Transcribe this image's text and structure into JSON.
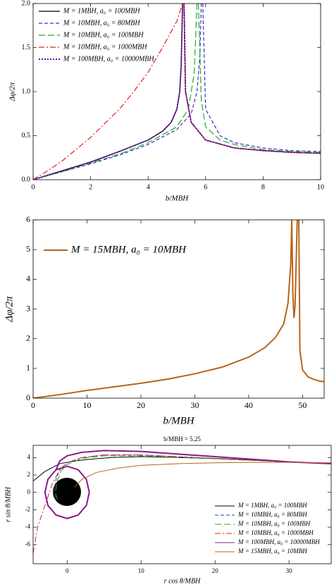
{
  "chart_data": [
    {
      "type": "line",
      "x_label": "b/MBH",
      "y_label": "Δφ/2π",
      "xlim": [
        0,
        10
      ],
      "xticks": [
        0,
        2,
        4,
        6,
        8,
        10
      ],
      "ylim": [
        0,
        2
      ],
      "yticks": [
        {
          "value": 0,
          "label": "0.0"
        },
        {
          "value": 0.5,
          "label": "0.5"
        },
        {
          "value": 1,
          "label": "1.0"
        },
        {
          "value": 1.5,
          "label": "1.5"
        },
        {
          "value": 2,
          "label": "2.0"
        }
      ],
      "legend": "upper left",
      "series": [
        {
          "name": "M = 1MBH, a₀ = 100MBH",
          "color": "#000000",
          "dash": "solid",
          "x": [
            0,
            1,
            2,
            3,
            4,
            4.5,
            4.8,
            5.0,
            5.1,
            5.15,
            5.2,
            5.22,
            5.25,
            5.3,
            5.5,
            6,
            7,
            8,
            9,
            10
          ],
          "values": [
            0,
            0.1,
            0.2,
            0.32,
            0.45,
            0.55,
            0.65,
            0.8,
            1.0,
            1.3,
            2.0,
            null,
            2.0,
            1.0,
            0.65,
            0.45,
            0.36,
            0.33,
            0.31,
            0.3
          ]
        },
        {
          "name": "M = 10MBH, a₀ = 80MBH",
          "color": "#3333cc",
          "dash": "dashed",
          "x": [
            0,
            1,
            2,
            3,
            4,
            5,
            5.5,
            5.7,
            5.8,
            5.85,
            5.87,
            5.9,
            6,
            6.5,
            7,
            8,
            9,
            10
          ],
          "values": [
            0,
            0.09,
            0.18,
            0.28,
            0.4,
            0.57,
            0.75,
            1.0,
            1.4,
            2.0,
            null,
            2.0,
            0.8,
            0.5,
            0.42,
            0.36,
            0.33,
            0.32
          ]
        },
        {
          "name": "M = 10MBH, a₀ = 100MBH",
          "color": "#22aa22",
          "dash": "longdash",
          "x": [
            0,
            1,
            2,
            3,
            4,
            5,
            5.4,
            5.6,
            5.7,
            5.72,
            5.75,
            5.85,
            6,
            6.5,
            7,
            8,
            9,
            10
          ],
          "values": [
            0,
            0.09,
            0.19,
            0.29,
            0.42,
            0.6,
            0.8,
            1.2,
            2.0,
            null,
            2.0,
            0.9,
            0.6,
            0.45,
            0.4,
            0.34,
            0.32,
            0.31
          ]
        },
        {
          "name": "M = 10MBH, a₀ = 1000MBH",
          "color": "#dd2222",
          "dash": "dashdot",
          "x": [
            0,
            0.5,
            1,
            2,
            3,
            3.5,
            4,
            4.5,
            5,
            5.2,
            5.22,
            5.25,
            5.3,
            5.5,
            6,
            7,
            8,
            9,
            10
          ],
          "values": [
            0,
            0.1,
            0.21,
            0.48,
            0.8,
            1.0,
            1.22,
            1.5,
            1.8,
            2.0,
            null,
            2.0,
            1.0,
            0.65,
            0.45,
            0.36,
            0.33,
            0.31,
            0.3
          ]
        },
        {
          "name": "M = 100MBH, a₀ = 10000MBH",
          "color": "#6a0dad",
          "dash": "dotted",
          "x": [
            0,
            1,
            2,
            3,
            4,
            4.5,
            4.8,
            5.0,
            5.1,
            5.15,
            5.2,
            5.22,
            5.25,
            5.3,
            5.5,
            6,
            7,
            8,
            9,
            10
          ],
          "values": [
            0,
            0.1,
            0.2,
            0.32,
            0.45,
            0.55,
            0.65,
            0.8,
            1.0,
            1.3,
            2.0,
            null,
            2.0,
            1.0,
            0.65,
            0.45,
            0.36,
            0.33,
            0.31,
            0.3
          ]
        }
      ]
    },
    {
      "type": "line",
      "x_label": "b/MBH",
      "y_label": "Δφ/2π",
      "xlim": [
        0,
        54
      ],
      "xticks": [
        0,
        10,
        20,
        30,
        40,
        50
      ],
      "ylim": [
        0,
        6
      ],
      "yticks": [
        0,
        1,
        2,
        3,
        4,
        5,
        6
      ],
      "legend": "upper left",
      "series": [
        {
          "name": "M = 15MBH, a₀ = 10MBH",
          "color": "#b8651b",
          "dash": "solid",
          "x": [
            0,
            5,
            10,
            15,
            20,
            25,
            30,
            35,
            40,
            43,
            45,
            46.5,
            47.3,
            47.8,
            48.0,
            48.2,
            48.4,
            48.6,
            48.8,
            49.0,
            49.1,
            49.3,
            49.5,
            50,
            51,
            52,
            53,
            54
          ],
          "values": [
            0,
            0.12,
            0.26,
            0.38,
            0.5,
            0.64,
            0.82,
            1.04,
            1.38,
            1.7,
            2.05,
            2.5,
            3.2,
            4.5,
            6.0,
            3.5,
            2.7,
            3.1,
            4.5,
            6.0,
            null,
            6.0,
            1.6,
            0.95,
            0.72,
            0.64,
            0.58,
            0.55
          ]
        }
      ]
    },
    {
      "type": "line",
      "title": "b/MBH = 5.25",
      "x_label": "r cos θ/MBH",
      "y_label": "r sin θ/MBH",
      "xlim": [
        -4.6,
        35.7
      ],
      "xticks": [
        0,
        10,
        20,
        30
      ],
      "ylim": [
        -8.2,
        5.4
      ],
      "yticks": [
        -6,
        -4,
        -2,
        0,
        2,
        4
      ],
      "legend": "lower right",
      "series": [
        {
          "name": "M = 1MBH, a₀ = 100MBH",
          "color": "#000000",
          "dash": "solid",
          "x": [
            -4.6,
            -3,
            -1,
            1,
            3,
            6,
            10,
            15,
            20,
            25,
            30,
            35.7
          ],
          "values": [
            1.3,
            2.4,
            3.3,
            3.6,
            3.8,
            4.0,
            4.1,
            4.0,
            3.9,
            3.7,
            3.5,
            3.3
          ]
        },
        {
          "name": "M = 10MBH, a₀ = 80MBH",
          "color": "#3333cc",
          "dash": "dashed",
          "x": [
            -1.5,
            -1.8,
            -1.5,
            -1,
            0,
            2,
            5,
            10,
            20,
            30,
            35.7
          ],
          "values": [
            -0.6,
            0,
            1.5,
            2.6,
            3.4,
            4.0,
            4.3,
            4.3,
            3.9,
            3.5,
            3.3
          ]
        },
        {
          "name": "M = 10MBH, a₀ = 100MBH",
          "color": "#22aa22",
          "dash": "longdash",
          "x": [
            -1.3,
            -1.6,
            -1.3,
            -0.8,
            0,
            2,
            5,
            10,
            20,
            30,
            35.7
          ],
          "values": [
            -0.8,
            0,
            1.4,
            2.5,
            3.2,
            3.9,
            4.2,
            4.2,
            3.85,
            3.5,
            3.3
          ]
        },
        {
          "name": "M = 10MBH, a₀ = 1000MBH",
          "color": "#dd2222",
          "dash": "dashdot",
          "x": [
            -4.6,
            -4,
            -3,
            -2,
            -1,
            0,
            2,
            5,
            10,
            20,
            30,
            35.7
          ],
          "values": [
            -7,
            -4,
            -1.5,
            1,
            2.6,
            3.4,
            4.0,
            4.3,
            4.3,
            3.9,
            3.5,
            3.3
          ]
        },
        {
          "name": "M = 100MBH, a₀ = 10000MBH",
          "color": "#8b1a8b",
          "dash": "solid",
          "x": [
            3,
            2.6,
            1.5,
            0,
            -1.5,
            -2.6,
            -3,
            -2.6,
            -1.5,
            0,
            1.5,
            2.6,
            3,
            null,
            -1.5,
            -1,
            0,
            2,
            5,
            10,
            15,
            20,
            25,
            30,
            35.7
          ],
          "values": [
            0,
            1.5,
            2.6,
            3,
            2.6,
            1.5,
            0,
            -1.5,
            -2.6,
            -3,
            -2.6,
            -1.5,
            0,
            null,
            2.6,
            3.6,
            4.2,
            4.6,
            4.8,
            4.7,
            4.4,
            4.1,
            3.8,
            3.5,
            3.3
          ]
        },
        {
          "name": "M = 15MBH, a₀ = 10MBH",
          "color": "#b8651b",
          "dash": "solid",
          "x": [
            1,
            2,
            4,
            7,
            10,
            15,
            20,
            25,
            30,
            35.7
          ],
          "values": [
            0.6,
            1.5,
            2.3,
            2.8,
            3.1,
            3.3,
            3.4,
            3.45,
            3.45,
            3.4
          ]
        }
      ]
    }
  ]
}
